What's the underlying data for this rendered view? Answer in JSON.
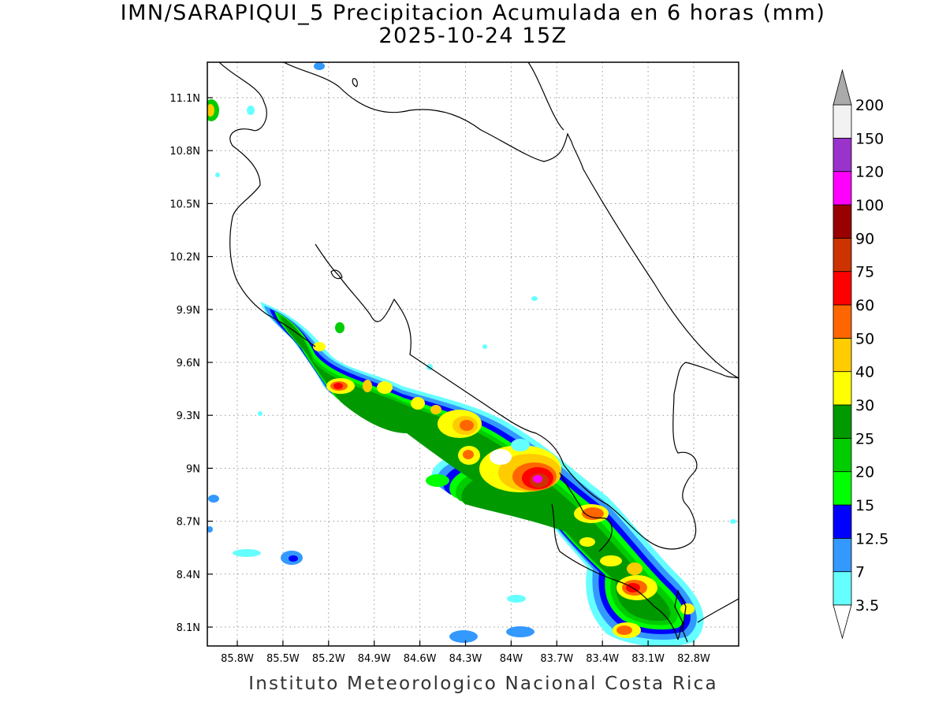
{
  "title": {
    "line1": "IMN/SARAPIQUI_5 Precipitacion Acumulada en 6 horas (mm)",
    "line2": "2025-10-24 15Z"
  },
  "credit": "Instituto Meteorologico Nacional Costa Rica",
  "axes": {
    "lon_ticks": [
      "85.8W",
      "85.5W",
      "85.2W",
      "84.9W",
      "84.6W",
      "84.3W",
      "84W",
      "83.7W",
      "83.4W",
      "83.1W",
      "82.8W"
    ],
    "lat_ticks": [
      "11.1N",
      "10.8N",
      "10.5N",
      "10.2N",
      "9.9N",
      "9.6N",
      "9.3N",
      "9N",
      "8.7N",
      "8.4N",
      "8.1N"
    ]
  },
  "colorbar": {
    "labels": [
      "3.5",
      "7",
      "12.5",
      "15",
      "20",
      "25",
      "30",
      "40",
      "50",
      "60",
      "75",
      "90",
      "100",
      "120",
      "150",
      "200"
    ],
    "colors": [
      "#66ffff",
      "#3399ff",
      "#0000ff",
      "#00ff00",
      "#00cc00",
      "#009900",
      "#ffff00",
      "#ffcc00",
      "#ff6600",
      "#ff0000",
      "#cc3300",
      "#990000",
      "#ff00ff",
      "#9933cc",
      "#f2f2f2"
    ],
    "over_color": "#aaaaaa",
    "under_color": "#ffffff"
  }
}
